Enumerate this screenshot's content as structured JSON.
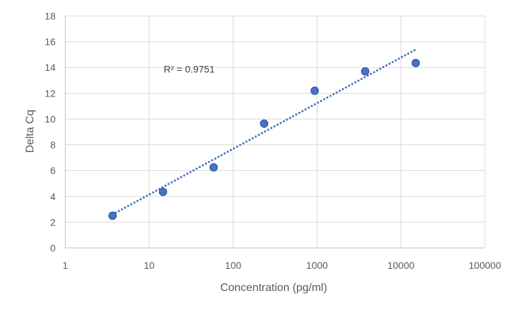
{
  "chart_data": {
    "type": "scatter",
    "title": "",
    "xlabel": "Concentration (pg/ml)",
    "ylabel": "Delta Cq",
    "x_scale": "log",
    "xlim": [
      1,
      100000
    ],
    "ylim": [
      0,
      18
    ],
    "x_ticks": [
      1,
      10,
      100,
      1000,
      10000,
      100000
    ],
    "x_tick_labels": [
      "1",
      "10",
      "100",
      "1000",
      "10000",
      "100000"
    ],
    "y_ticks": [
      0,
      2,
      4,
      6,
      8,
      10,
      12,
      14,
      16,
      18
    ],
    "y_tick_labels": [
      "0",
      "2",
      "4",
      "6",
      "8",
      "10",
      "12",
      "14",
      "16",
      "18"
    ],
    "grid": true,
    "legend": "none",
    "series": [
      {
        "x": [
          3.66,
          14.6,
          58.6,
          234,
          938,
          3750,
          15000
        ],
        "y": [
          2.5,
          4.35,
          6.25,
          9.65,
          12.2,
          13.7,
          14.35
        ],
        "marker_color": "#4472C4",
        "marker_edge_color": "#2F5597"
      }
    ],
    "trendline": {
      "type": "logarithmic",
      "x_start": 3.66,
      "x_end": 15000,
      "y_start": 2.6,
      "y_end": 15.4,
      "color": "#4472C4",
      "style": "dotted"
    },
    "annotations": [
      {
        "text": "R² = 0.9751",
        "x": 30,
        "y": 13.6
      }
    ],
    "colors": {
      "grid": "#D9D9D9",
      "axis": "#BFBFBF",
      "text": "#595959"
    }
  }
}
